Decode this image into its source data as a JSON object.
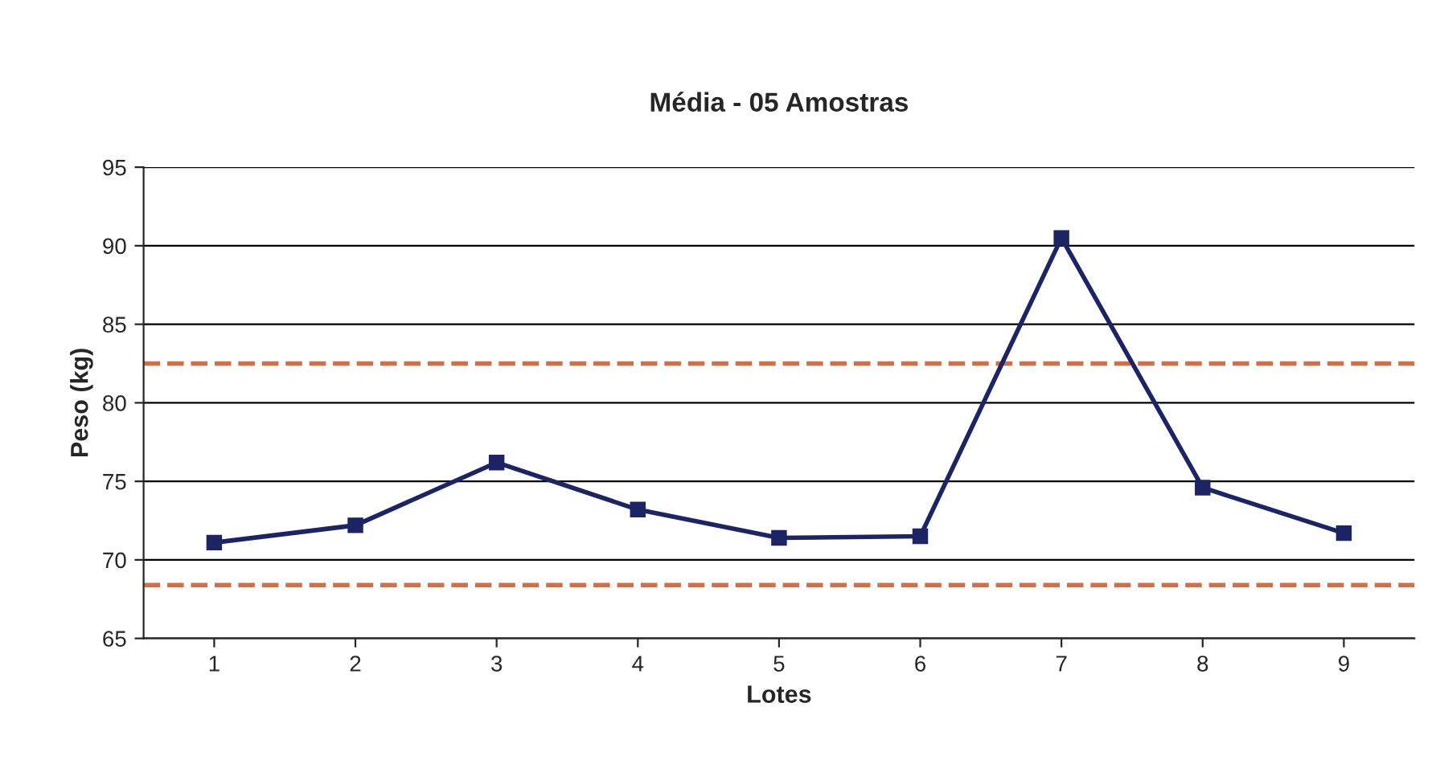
{
  "chart_data": {
    "type": "line",
    "title": "Média - 05 Amostras",
    "xlabel": "Lotes",
    "ylabel": "Peso (kg)",
    "categories": [
      "1",
      "2",
      "3",
      "4",
      "5",
      "6",
      "7",
      "8",
      "9"
    ],
    "series": [
      {
        "color": "#1c2466",
        "values": [
          71.1,
          72.2,
          76.2,
          73.2,
          71.4,
          71.5,
          90.5,
          74.6,
          71.7
        ]
      }
    ],
    "ylim": [
      65,
      95
    ],
    "yticks": [
      65,
      70,
      75,
      80,
      85,
      90,
      95
    ],
    "ref_lines": [
      {
        "axis": "y",
        "value": 82.5,
        "color": "#d0704a",
        "line_style": "dashed"
      },
      {
        "axis": "y",
        "value": 68.4,
        "color": "#d0704a",
        "line_style": "dashed"
      }
    ],
    "grid": "y",
    "marker": "square",
    "line_style": "solid"
  }
}
